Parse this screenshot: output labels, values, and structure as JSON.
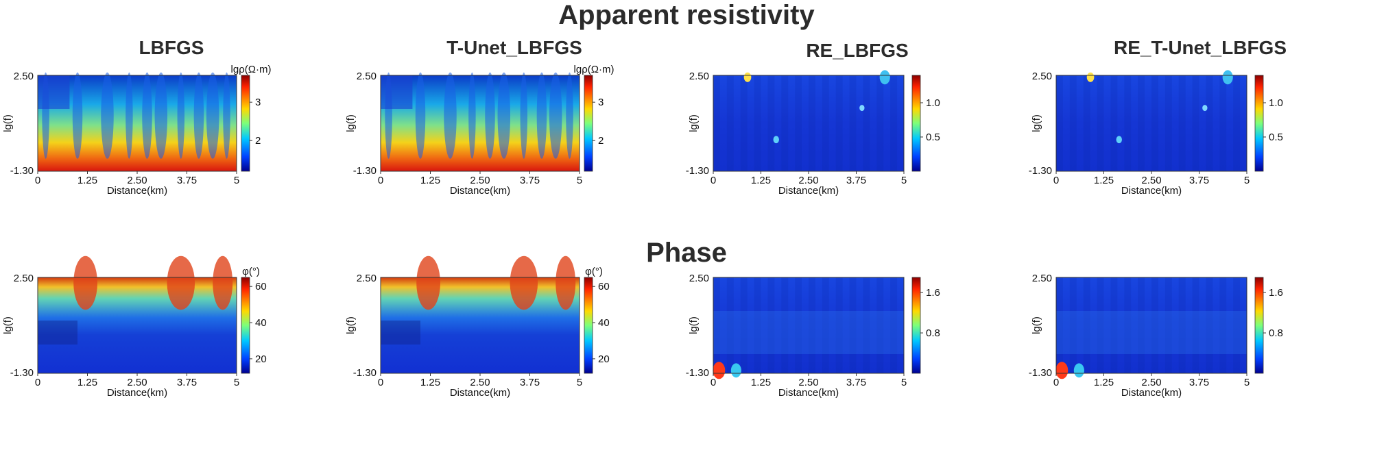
{
  "titles": {
    "top": "Apparent resistivity",
    "bottom": "Phase",
    "columns": [
      "LBFGS",
      "T-Unet_LBFGS",
      "RE_LBFGS",
      "RE_T-Unet_LBFGS"
    ]
  },
  "chart_data": [
    {
      "id": "p0",
      "type": "heatmap",
      "row": "Apparent resistivity",
      "column": "LBFGS",
      "xlabel": "Distance(km)",
      "ylabel": "lg(f)",
      "xlim": [
        0,
        5
      ],
      "ylim": [
        -1.3,
        2.5
      ],
      "xticks": [
        "0",
        "1.25",
        "2.50",
        "3.75",
        "5"
      ],
      "yticks": [
        "2.50",
        "-1.30"
      ],
      "colorbar_label": "lgρ(Ω·m)",
      "colorbar_ticks": [
        "3",
        "2"
      ],
      "colorbar_range": [
        1.2,
        3.7
      ],
      "colormap": "jet"
    },
    {
      "id": "p1",
      "type": "heatmap",
      "row": "Apparent resistivity",
      "column": "T-Unet_LBFGS",
      "xlabel": "Distance(km)",
      "ylabel": "lg(f)",
      "xlim": [
        0,
        5
      ],
      "ylim": [
        -1.3,
        2.5
      ],
      "xticks": [
        "0",
        "1.25",
        "2.50",
        "3.75",
        "5"
      ],
      "yticks": [
        "2.50",
        "-1.30"
      ],
      "colorbar_label": "lgρ(Ω·m)",
      "colorbar_ticks": [
        "3",
        "2"
      ],
      "colorbar_range": [
        1.2,
        3.7
      ],
      "colormap": "jet"
    },
    {
      "id": "p2",
      "type": "heatmap",
      "row": "Apparent resistivity",
      "column": "RE_LBFGS",
      "xlabel": "Distance(km)",
      "ylabel": "lg(f)",
      "xlim": [
        0,
        5
      ],
      "ylim": [
        -1.3,
        2.5
      ],
      "xticks": [
        "0",
        "1.25",
        "2.50",
        "3.75",
        "5"
      ],
      "yticks": [
        "2.50",
        "-1.30"
      ],
      "colorbar_label": "",
      "colorbar_ticks": [
        "1.0",
        "0.5"
      ],
      "colorbar_range": [
        0,
        1.4
      ],
      "colormap": "jet"
    },
    {
      "id": "p3",
      "type": "heatmap",
      "row": "Apparent resistivity",
      "column": "RE_T-Unet_LBFGS",
      "xlabel": "Distance(km)",
      "ylabel": "lg(f)",
      "xlim": [
        0,
        5
      ],
      "ylim": [
        -1.3,
        2.5
      ],
      "xticks": [
        "0",
        "1.25",
        "2.50",
        "3.75",
        "5"
      ],
      "yticks": [
        "2.50",
        "-1.30"
      ],
      "colorbar_label": "",
      "colorbar_ticks": [
        "1.0",
        "0.5"
      ],
      "colorbar_range": [
        0,
        1.4
      ],
      "colormap": "jet"
    },
    {
      "id": "p4",
      "type": "heatmap",
      "row": "Phase",
      "column": "LBFGS",
      "xlabel": "Distance(km)",
      "ylabel": "lg(f)",
      "xlim": [
        0,
        5
      ],
      "ylim": [
        -1.3,
        2.5
      ],
      "xticks": [
        "0",
        "1.25",
        "2.50",
        "3.75",
        "5"
      ],
      "yticks": [
        "2.50",
        "-1.30"
      ],
      "colorbar_label": "φ(°)",
      "colorbar_ticks": [
        "60",
        "40",
        "20"
      ],
      "colorbar_range": [
        12,
        65
      ],
      "colormap": "jet"
    },
    {
      "id": "p5",
      "type": "heatmap",
      "row": "Phase",
      "column": "T-Unet_LBFGS",
      "xlabel": "Distance(km)",
      "ylabel": "lg(f)",
      "xlim": [
        0,
        5
      ],
      "ylim": [
        -1.3,
        2.5
      ],
      "xticks": [
        "0",
        "1.25",
        "2.50",
        "3.75",
        "5"
      ],
      "yticks": [
        "2.50",
        "-1.30"
      ],
      "colorbar_label": "φ(°)",
      "colorbar_ticks": [
        "60",
        "40",
        "20"
      ],
      "colorbar_range": [
        12,
        65
      ],
      "colormap": "jet"
    },
    {
      "id": "p6",
      "type": "heatmap",
      "row": "Phase",
      "column": "RE_LBFGS",
      "xlabel": "Distance(km)",
      "ylabel": "lg(f)",
      "xlim": [
        0,
        5
      ],
      "ylim": [
        -1.3,
        2.5
      ],
      "xticks": [
        "0",
        "1.25",
        "2.50",
        "3.75",
        "5"
      ],
      "yticks": [
        "2.50",
        "-1.30"
      ],
      "colorbar_label": "",
      "colorbar_ticks": [
        "1.6",
        "0.8"
      ],
      "colorbar_range": [
        0,
        1.9
      ],
      "colormap": "jet"
    },
    {
      "id": "p7",
      "type": "heatmap",
      "row": "Phase",
      "column": "RE_T-Unet_LBFGS",
      "xlabel": "Distance(km)",
      "ylabel": "lg(f)",
      "xlim": [
        0,
        5
      ],
      "ylim": [
        -1.3,
        2.5
      ],
      "xticks": [
        "0",
        "1.25",
        "2.50",
        "3.75",
        "5"
      ],
      "yticks": [
        "2.50",
        "-1.30"
      ],
      "colorbar_label": "",
      "colorbar_ticks": [
        "1.6",
        "0.8"
      ],
      "colorbar_range": [
        0,
        1.9
      ],
      "colormap": "jet"
    }
  ]
}
